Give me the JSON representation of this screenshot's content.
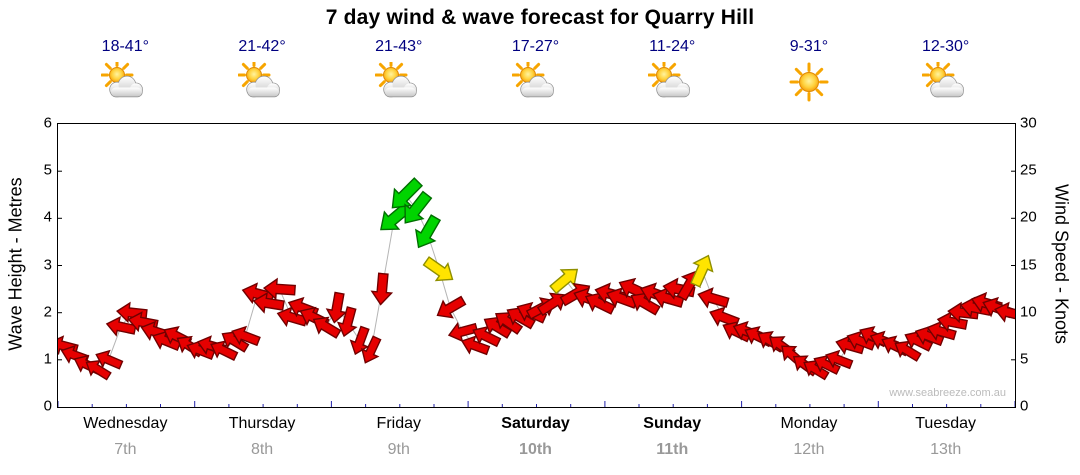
{
  "title": "7 day wind & wave forecast for Quarry Hill",
  "watermark": "www.seabreeze.com.au",
  "forecast": {
    "days": [
      {
        "name": "Wednesday",
        "date": "7th",
        "temps": "18-41°",
        "icon": "partly-cloudy",
        "weekend": false
      },
      {
        "name": "Thursday",
        "date": "8th",
        "temps": "21-42°",
        "icon": "partly-cloudy",
        "weekend": false
      },
      {
        "name": "Friday",
        "date": "9th",
        "temps": "21-43°",
        "icon": "partly-cloudy",
        "weekend": false
      },
      {
        "name": "Saturday",
        "date": "10th",
        "temps": "17-27°",
        "icon": "partly-cloudy",
        "weekend": true
      },
      {
        "name": "Sunday",
        "date": "11th",
        "temps": "11-24°",
        "icon": "partly-cloudy",
        "weekend": true
      },
      {
        "name": "Monday",
        "date": "12th",
        "temps": "9-31°",
        "icon": "sunny",
        "weekend": false
      },
      {
        "name": "Tuesday",
        "date": "13th",
        "temps": "12-30°",
        "icon": "partly-cloudy",
        "weekend": false
      }
    ]
  },
  "colors": {
    "temp_text": "#000080",
    "date_text": "#999999",
    "day_text": "#000000",
    "watermark_text": "#bbbbbb",
    "tick_blue": "#2222aa",
    "trend_line": "#b5b5b5",
    "arrow_red": "#e60000",
    "arrow_red_border": "#700000",
    "arrow_yellow": "#ffe400",
    "arrow_yellow_border": "#8f8f00",
    "arrow_green": "#00d400",
    "arrow_green_border": "#006e00"
  },
  "chart_data": {
    "type": "scatter",
    "style": "wind-arrows",
    "title": "7 day wind & wave forecast for Quarry Hill",
    "x_axis": {
      "day_labels": [
        "Wednesday 7th",
        "Thursday 8th",
        "Friday 9th",
        "Saturday 10th",
        "Sunday 11th",
        "Monday 12th",
        "Tuesday 13th"
      ],
      "range_days": [
        0,
        7
      ],
      "tick_interval_hours": 6
    },
    "y_left": {
      "label": "Wave Height - Metres",
      "range": [
        0,
        6
      ],
      "ticks": [
        0,
        1,
        2,
        3,
        4,
        5,
        6
      ]
    },
    "y_right": {
      "label": "Wind Speed - Knots",
      "range": [
        0,
        30
      ],
      "ticks": [
        0,
        5,
        10,
        15,
        20,
        25,
        30
      ]
    },
    "color_rules": {
      "green_min_kt": 17,
      "yellow_min_kt": 13.5,
      "red_below_kt": 13.5
    },
    "point_format": [
      "day_fraction",
      "wind_knots",
      "arrow_dir_deg_cw_from_east"
    ],
    "points": [
      [
        0.04,
        6.5,
        195
      ],
      [
        0.12,
        5.5,
        200
      ],
      [
        0.21,
        4.5,
        205
      ],
      [
        0.29,
        4,
        212
      ],
      [
        0.37,
        5,
        203
      ],
      [
        0.46,
        8.5,
        192
      ],
      [
        0.54,
        10,
        186
      ],
      [
        0.62,
        9,
        191
      ],
      [
        0.71,
        8,
        197
      ],
      [
        0.79,
        7,
        202
      ],
      [
        0.87,
        7.5,
        207
      ],
      [
        0.96,
        6.5,
        212
      ],
      [
        1.04,
        6,
        201
      ],
      [
        1.12,
        6.5,
        196
      ],
      [
        1.21,
        6,
        206
      ],
      [
        1.29,
        7,
        211
      ],
      [
        1.37,
        7.5,
        201
      ],
      [
        1.46,
        12,
        194
      ],
      [
        1.54,
        11,
        189
      ],
      [
        1.62,
        12.5,
        184
      ],
      [
        1.71,
        9.5,
        196
      ],
      [
        1.79,
        10.5,
        201
      ],
      [
        1.87,
        9.5,
        206
      ],
      [
        1.96,
        8.5,
        211
      ],
      [
        2.04,
        10.5,
        100
      ],
      [
        2.12,
        9,
        105
      ],
      [
        2.21,
        7,
        110
      ],
      [
        2.29,
        6,
        115
      ],
      [
        2.37,
        12.5,
        95
      ],
      [
        2.46,
        20,
        140
      ],
      [
        2.54,
        22.5,
        135
      ],
      [
        2.62,
        21,
        128
      ],
      [
        2.7,
        18.5,
        120
      ],
      [
        2.79,
        14.5,
        35
      ],
      [
        2.87,
        10.5,
        150
      ],
      [
        2.96,
        8,
        165
      ],
      [
        3.05,
        6.5,
        200
      ],
      [
        3.13,
        7.5,
        206
      ],
      [
        3.21,
        8.5,
        211
      ],
      [
        3.29,
        9,
        215
      ],
      [
        3.38,
        9.5,
        210
      ],
      [
        3.46,
        10,
        204
      ],
      [
        3.54,
        10.5,
        -28
      ],
      [
        3.62,
        11,
        -33
      ],
      [
        3.71,
        13.5,
        -40
      ],
      [
        3.79,
        12,
        -30
      ],
      [
        3.88,
        11.5,
        200
      ],
      [
        3.96,
        11,
        206
      ],
      [
        4.04,
        12,
        195
      ],
      [
        4.12,
        11.5,
        200
      ],
      [
        4.21,
        12.5,
        205
      ],
      [
        4.29,
        11,
        210
      ],
      [
        4.37,
        12,
        200
      ],
      [
        4.46,
        11.5,
        196
      ],
      [
        4.54,
        12.5,
        191
      ],
      [
        4.62,
        13,
        -60
      ],
      [
        4.71,
        14.5,
        -66
      ],
      [
        4.79,
        11.5,
        196
      ],
      [
        4.87,
        9.5,
        201
      ],
      [
        4.96,
        8,
        206
      ],
      [
        5.04,
        8,
        201
      ],
      [
        5.12,
        7.5,
        206
      ],
      [
        5.21,
        7,
        211
      ],
      [
        5.29,
        6.5,
        216
      ],
      [
        5.37,
        5.5,
        221
      ],
      [
        5.46,
        4.5,
        216
      ],
      [
        5.54,
        4,
        211
      ],
      [
        5.62,
        4.5,
        206
      ],
      [
        5.71,
        5,
        201
      ],
      [
        5.79,
        6.5,
        196
      ],
      [
        5.87,
        7,
        201
      ],
      [
        5.96,
        7.5,
        206
      ],
      [
        6.04,
        7,
        201
      ],
      [
        6.12,
        6.5,
        206
      ],
      [
        6.21,
        6,
        211
      ],
      [
        6.29,
        7,
        206
      ],
      [
        6.37,
        7.5,
        201
      ],
      [
        6.46,
        8,
        196
      ],
      [
        6.54,
        9,
        191
      ],
      [
        6.62,
        10,
        186
      ],
      [
        6.71,
        10.5,
        191
      ],
      [
        6.79,
        11,
        196
      ],
      [
        6.87,
        10.5,
        201
      ],
      [
        6.96,
        10,
        193
      ]
    ]
  }
}
